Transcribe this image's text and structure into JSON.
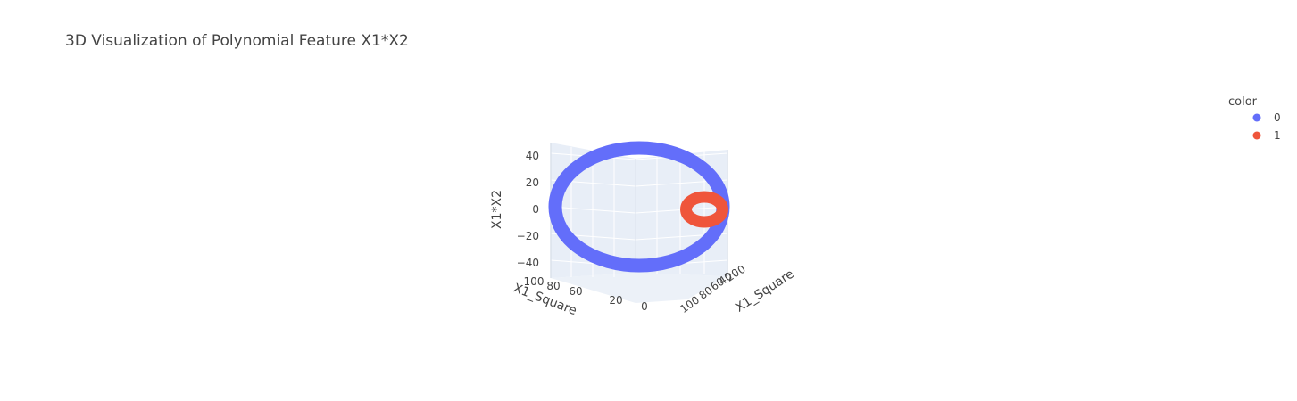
{
  "chart_data": {
    "type": "scatter3d",
    "title": "3D Visualization of Polynomial Feature X1*X2",
    "x_axis": {
      "label": "X1_Square",
      "ticks": [
        "100",
        "80",
        "60",
        "40",
        "20",
        "0"
      ]
    },
    "y_axis": {
      "label": "X1_Square",
      "ticks": [
        "100",
        "80",
        "60",
        "40",
        "20",
        "0"
      ]
    },
    "z_axis": {
      "label": "X1*X2",
      "ticks": [
        "40",
        "20",
        "0",
        "−20",
        "−40"
      ],
      "range": [
        -50,
        50
      ]
    },
    "legend": {
      "title": "color",
      "placement": "top-right",
      "entries": [
        {
          "label": "0",
          "color": "#636efa"
        },
        {
          "label": "1",
          "color": "#ef553b"
        }
      ]
    },
    "series": [
      {
        "name": "0",
        "color": "#636efa",
        "shape": "ring",
        "radius": 10
      },
      {
        "name": "1",
        "color": "#ef553b",
        "shape": "ring",
        "radius": 2.5
      }
    ],
    "grid": true
  }
}
